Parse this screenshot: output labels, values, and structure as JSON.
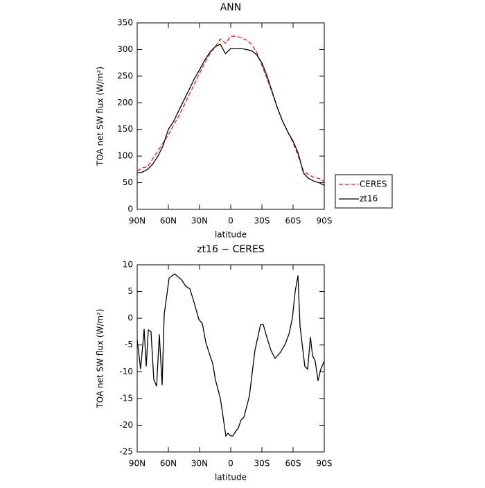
{
  "chart_data": [
    {
      "type": "line",
      "title": "ANN",
      "x_label": "latitude",
      "y_label": "TOA net SW flux (W/m²)",
      "x": [
        90,
        85,
        80,
        75,
        70,
        65,
        60,
        55,
        50,
        45,
        40,
        35,
        30,
        25,
        20,
        15,
        10,
        5,
        0,
        -5,
        -10,
        -15,
        -20,
        -25,
        -30,
        -35,
        -40,
        -45,
        -50,
        -55,
        -60,
        -65,
        -70,
        -75,
        -80,
        -85,
        -90
      ],
      "series": [
        {
          "name": "CERES",
          "color": "#e31a1c",
          "dashed": true,
          "values": [
            72,
            78,
            80,
            95,
            110,
            125,
            140,
            158,
            175,
            195,
            215,
            235,
            255,
            275,
            292,
            305,
            320,
            312,
            325,
            325,
            322,
            318,
            310,
            295,
            270,
            245,
            218,
            190,
            165,
            145,
            125,
            100,
            72,
            65,
            60,
            58,
            52
          ]
        },
        {
          "name": "zt16",
          "color": "#000000",
          "dashed": false,
          "values": [
            68,
            70,
            75,
            85,
            100,
            120,
            150,
            165,
            185,
            205,
            225,
            245,
            262,
            280,
            295,
            305,
            310,
            292,
            302,
            302,
            302,
            300,
            298,
            290,
            275,
            250,
            220,
            190,
            165,
            145,
            128,
            105,
            68,
            58,
            53,
            50,
            45
          ]
        }
      ],
      "xlim": [
        90,
        -90
      ],
      "xticks": [
        {
          "value": 90,
          "label": "90N"
        },
        {
          "value": 60,
          "label": "60N"
        },
        {
          "value": 30,
          "label": "30N"
        },
        0,
        {
          "value": -30,
          "label": "30S"
        },
        {
          "value": -60,
          "label": "60S"
        },
        {
          "value": -90,
          "label": "90S"
        }
      ],
      "ylim": [
        0,
        350
      ],
      "yticks": [
        0,
        50,
        100,
        150,
        200,
        250,
        300,
        350
      ],
      "legend": "right"
    },
    {
      "type": "line",
      "title": "zt16 − CERES",
      "x_label": "latitude",
      "y_label": "TOA net SW flux (W/m²)",
      "x": [
        90,
        86.7,
        83.3,
        81.3,
        79.3,
        76.7,
        74,
        71.3,
        68.7,
        66,
        64,
        59.3,
        54,
        47.3,
        43.3,
        39.3,
        35.3,
        30.7,
        27.3,
        24,
        20.7,
        17.3,
        14.7,
        12,
        10,
        7.3,
        4.7,
        2.7,
        0,
        -2,
        -5.3,
        -7.3,
        -10,
        -12.7,
        -18,
        -23.3,
        -26.7,
        -28.7,
        -31.3,
        -34.7,
        -38.7,
        -42.7,
        -47.3,
        -52,
        -56,
        -59.3,
        -62,
        -64.7,
        -66.7,
        -71.3,
        -74,
        -76.7,
        -78.7,
        -81.3,
        -84,
        -86.7,
        -90
      ],
      "series": [
        {
          "name": "zt16 − CERES",
          "color": "#000000",
          "dashed": false,
          "values": [
            -4,
            -9.5,
            -2,
            -9,
            -2.2,
            -2.5,
            -11.5,
            -12.7,
            -3,
            -12.5,
            0.7,
            7.5,
            8.3,
            7.2,
            6,
            5.5,
            3,
            -0.2,
            -1,
            -4.5,
            -6.5,
            -8.5,
            -11.5,
            -13.5,
            -15,
            -18.5,
            -22,
            -21.5,
            -22,
            -22,
            -21,
            -20.5,
            -19,
            -18.5,
            -14.5,
            -6,
            -3,
            -1.2,
            -1.2,
            -3.5,
            -6,
            -7.5,
            -6.5,
            -5,
            -3,
            0,
            5,
            8,
            -1.5,
            -9,
            -9.5,
            -3.5,
            -7,
            -8,
            -11.7,
            -9.5,
            -8
          ]
        }
      ],
      "xlim": [
        90,
        -90
      ],
      "xticks": [
        {
          "value": 90,
          "label": "90N"
        },
        {
          "value": 60,
          "label": "60N"
        },
        {
          "value": 30,
          "label": "30N"
        },
        0,
        {
          "value": -30,
          "label": "30S"
        },
        {
          "value": -60,
          "label": "60S"
        },
        {
          "value": -90,
          "label": "90S"
        }
      ],
      "ylim": [
        -25,
        10
      ],
      "yticks": [
        -25,
        -20,
        -15,
        -10,
        -5,
        0,
        5,
        10
      ]
    }
  ]
}
